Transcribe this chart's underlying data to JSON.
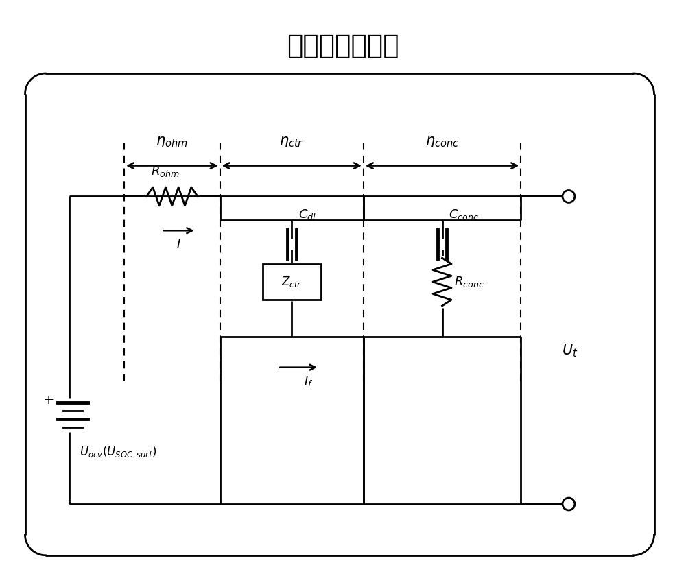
{
  "title": "端电压响应模拟",
  "title_fontsize": 28,
  "background_color": "#ffffff",
  "fig_width": 10.0,
  "fig_height": 8.56,
  "lw": 2.0
}
